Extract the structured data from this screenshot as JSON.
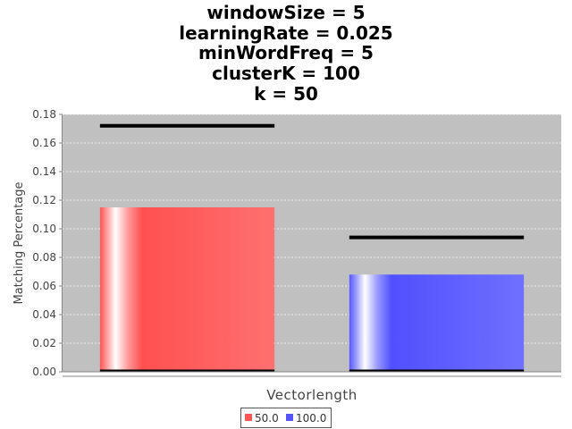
{
  "chart_data": {
    "type": "bar",
    "title_lines": [
      "windowSize = 5",
      "learningRate = 0.025",
      "minWordFreq = 5",
      "clusterK = 100",
      "k = 50"
    ],
    "xlabel": "Vectorlength",
    "ylabel": "Matching Percentage",
    "ylim": [
      0,
      0.18
    ],
    "yticks": [
      "0.00",
      "0.02",
      "0.04",
      "0.06",
      "0.08",
      "0.10",
      "0.12",
      "0.14",
      "0.16",
      "0.18"
    ],
    "grid": true,
    "legend_position": "bottom-center",
    "series": [
      {
        "name": "50.0",
        "value": 0.115,
        "error_high": 0.172,
        "error_low": 0.0,
        "color": "#ff5555"
      },
      {
        "name": "100.0",
        "value": 0.068,
        "error_high": 0.094,
        "error_low": 0.0,
        "color": "#5555ff"
      }
    ]
  }
}
